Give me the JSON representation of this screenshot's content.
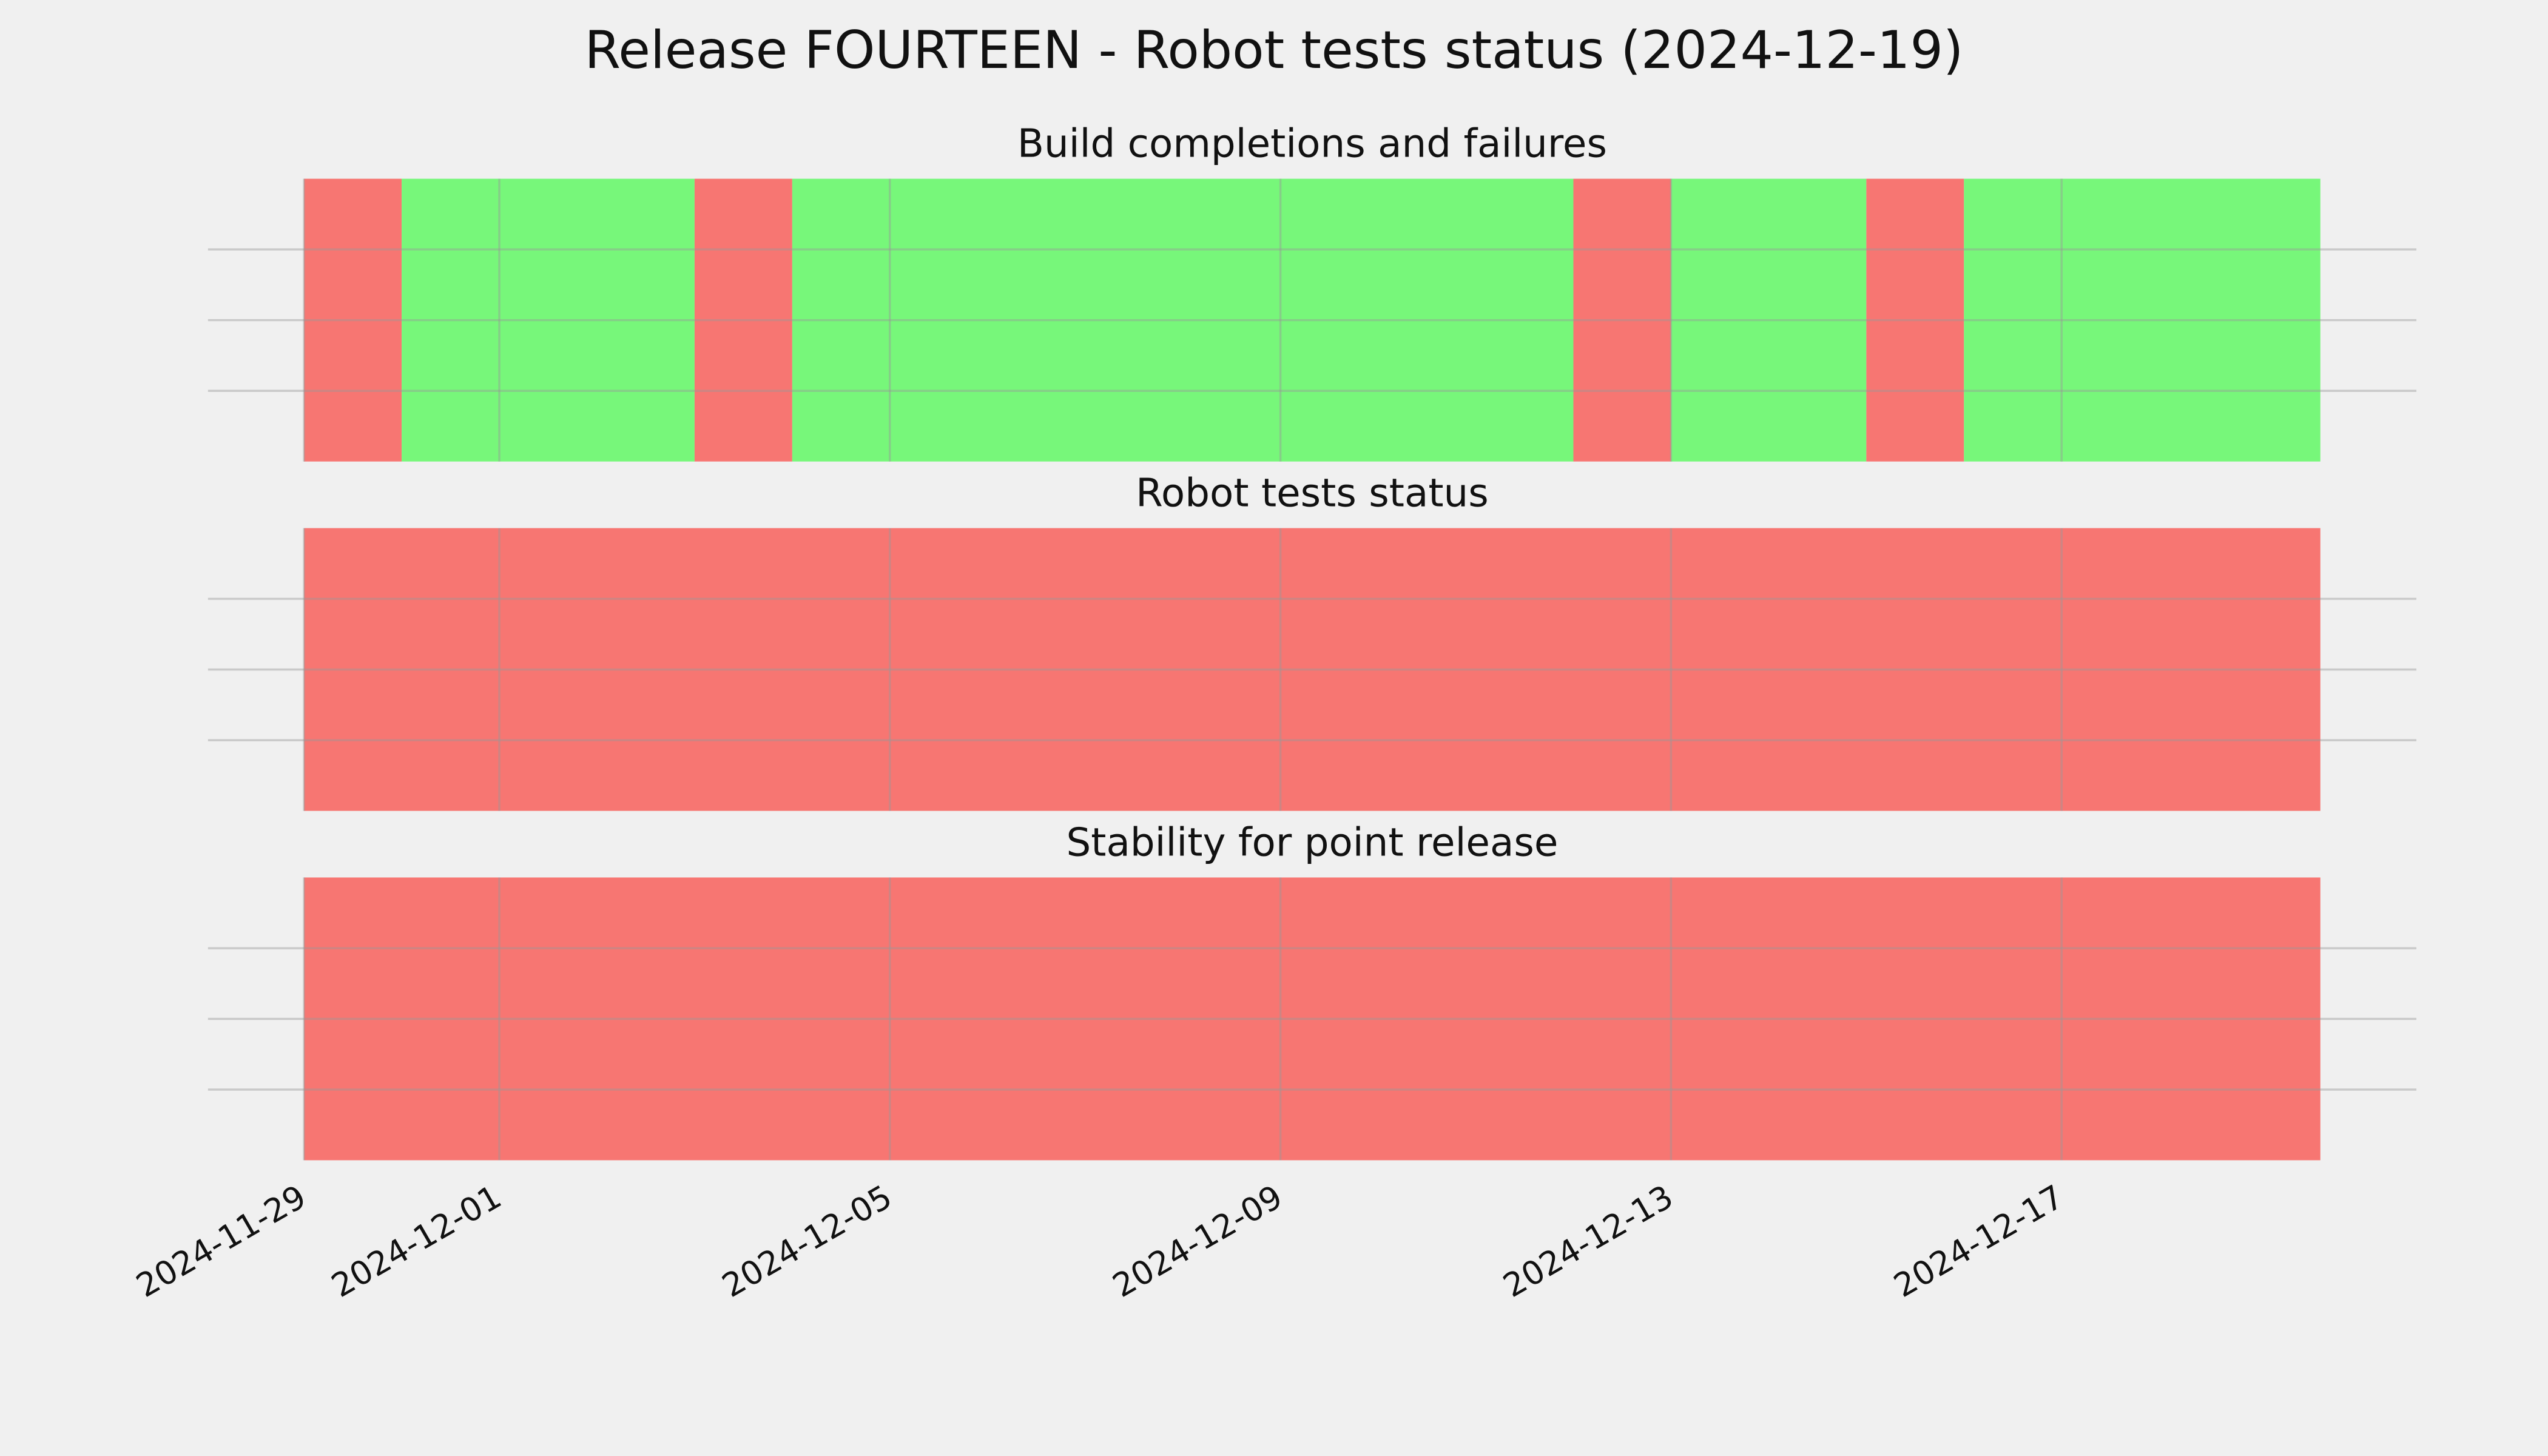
{
  "title": "Release FOURTEEN - Robot tests status (2024-12-19)",
  "chart_data": [
    {
      "type": "timeline",
      "title": "Build completions and failures",
      "spans": [
        {
          "start": "2024-11-29",
          "end": "2024-11-30",
          "color": "#f77672"
        },
        {
          "start": "2024-11-30",
          "end": "2024-12-03",
          "color": "#77f77a"
        },
        {
          "start": "2024-12-03",
          "end": "2024-12-04",
          "color": "#f77672"
        },
        {
          "start": "2024-12-04",
          "end": "2024-12-12",
          "color": "#77f77a"
        },
        {
          "start": "2024-12-12",
          "end": "2024-12-13",
          "color": "#f77672"
        },
        {
          "start": "2024-12-13",
          "end": "2024-12-15",
          "color": "#77f77a"
        },
        {
          "start": "2024-12-15",
          "end": "2024-12-16",
          "color": "#f77672"
        },
        {
          "start": "2024-12-16",
          "end": "2024-12-19T15:36",
          "color": "#77f77a"
        }
      ],
      "xlim": [
        "2024-11-28T00:24",
        "2024-12-20T15:12"
      ],
      "xticks": [
        "2024-11-29",
        "2024-12-01",
        "2024-12-05",
        "2024-12-09",
        "2024-12-13",
        "2024-12-17"
      ],
      "ylim": [
        0,
        1
      ],
      "yticks": [
        0.25,
        0.5,
        0.75
      ],
      "grid": true
    },
    {
      "type": "timeline",
      "title": "Robot tests status",
      "spans": [
        {
          "start": "2024-11-29",
          "end": "2024-12-19T15:36",
          "color": "#f77672"
        }
      ],
      "xlim": [
        "2024-11-28T00:24",
        "2024-12-20T15:12"
      ],
      "xticks": [
        "2024-11-29",
        "2024-12-01",
        "2024-12-05",
        "2024-12-09",
        "2024-12-13",
        "2024-12-17"
      ],
      "ylim": [
        0,
        1
      ],
      "yticks": [
        0.25,
        0.5,
        0.75
      ],
      "grid": true
    },
    {
      "type": "timeline",
      "title": "Stability for point release",
      "spans": [
        {
          "start": "2024-11-29",
          "end": "2024-12-19T15:36",
          "color": "#f77672"
        }
      ],
      "xlim": [
        "2024-11-28T00:24",
        "2024-12-20T15:12"
      ],
      "xticks": [
        "2024-11-29",
        "2024-12-01",
        "2024-12-05",
        "2024-12-09",
        "2024-12-13",
        "2024-12-17"
      ],
      "ylim": [
        0,
        1
      ],
      "yticks": [
        0.25,
        0.5,
        0.75
      ],
      "grid": true
    }
  ]
}
